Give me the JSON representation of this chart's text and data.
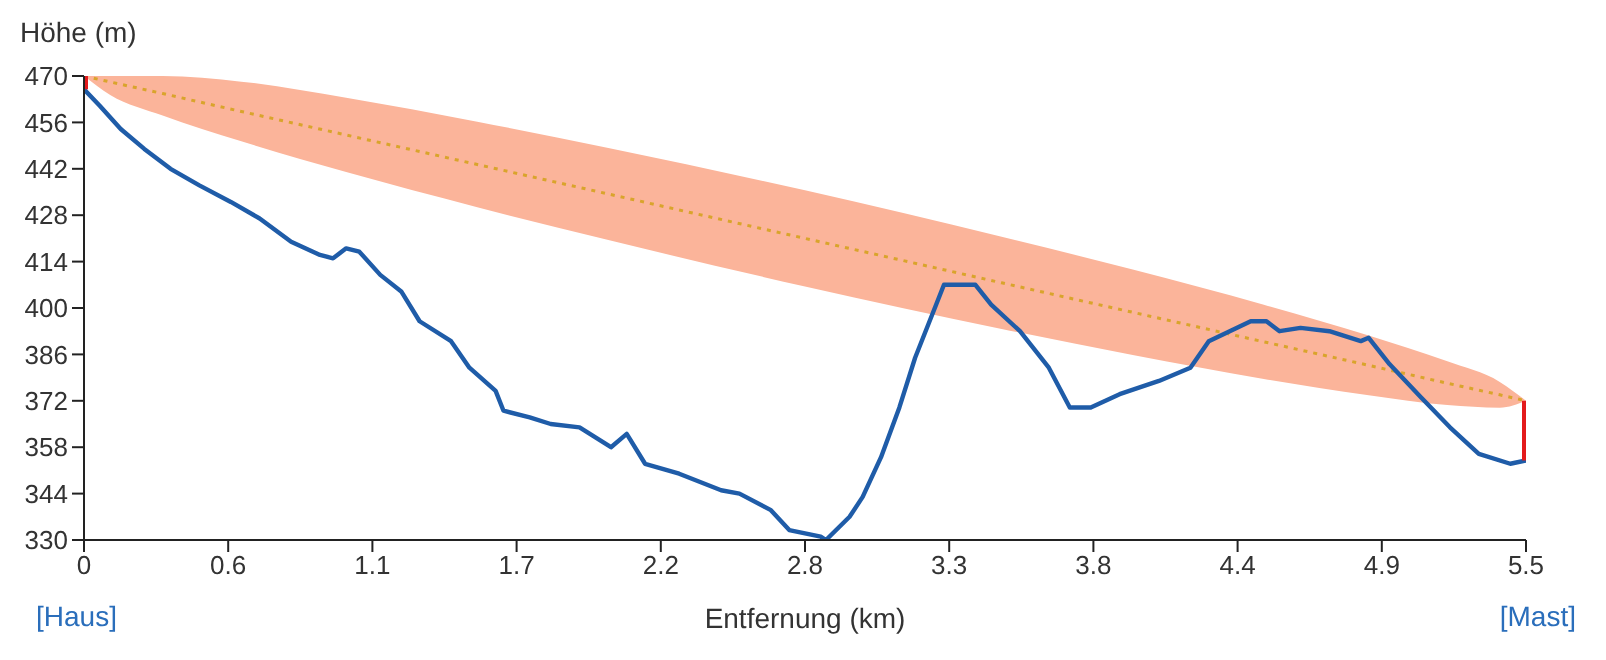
{
  "chart_data": {
    "type": "line",
    "ylabel": "Höhe (m)",
    "xlabel": "Entfernung (km)",
    "xlim": [
      0,
      5.5
    ],
    "xticks": [
      0,
      {
        "value": 0.55,
        "label": "0.6"
      },
      1.1,
      {
        "value": 1.65,
        "label": "1.7"
      },
      2.2,
      {
        "value": 2.75,
        "label": "2.8"
      },
      3.3,
      {
        "value": 3.85,
        "label": "3.8"
      },
      4.4,
      {
        "value": 4.95,
        "label": "4.9"
      },
      5.5
    ],
    "ylim": [
      330,
      470
    ],
    "yticks": [
      330,
      344,
      358,
      372,
      386,
      400,
      414,
      428,
      442,
      456,
      470
    ],
    "marker": "none",
    "annotations": [
      "[Haus]",
      "[Mast]"
    ],
    "series": [
      {
        "type": "line",
        "line_style": "dotted",
        "color": "#d9a42c",
        "x": [
          0,
          0.1,
          0.3,
          0.6,
          1,
          1.5,
          2,
          2.75,
          3.5,
          4,
          4.5,
          4.9,
          5.2,
          5.4,
          5.5
        ],
        "values": [
          470,
          468.2,
          464.7,
          459.3,
          452.2,
          443.3,
          434.4,
          421,
          407.6,
          398.7,
          389.8,
          382.7,
          377.3,
          373.8,
          372
        ],
        "lower": [
          470,
          464.3,
          458.1,
          450.3,
          441,
          430.4,
          420.5,
          406.5,
          393.7,
          385.8,
          378.6,
          373.7,
          370.7,
          369.9,
          372
        ],
        "upper": [
          470,
          470,
          470,
          468.3,
          463.4,
          456.2,
          448.3,
          435.5,
          421.5,
          411.6,
          401,
          391.7,
          383.9,
          377.7,
          372
        ]
      },
      {
        "line_style": "solid",
        "color": "#1f5ca8",
        "x": [
          0,
          0.06,
          0.14,
          0.23,
          0.33,
          0.44,
          0.56,
          0.67,
          0.79,
          0.9,
          0.95,
          1.0,
          1.05,
          1.13,
          1.21,
          1.28,
          1.4,
          1.47,
          1.57,
          1.6,
          1.7,
          1.78,
          1.89,
          2.01,
          2.07,
          2.14,
          2.27,
          2.43,
          2.5,
          2.62,
          2.69,
          2.81,
          2.83,
          2.92,
          2.97,
          3.04,
          3.11,
          3.17,
          3.25,
          3.28,
          3.34,
          3.4,
          3.46,
          3.57,
          3.68,
          3.76,
          3.84,
          3.95,
          4.1,
          4.22,
          4.29,
          4.37,
          4.45,
          4.51,
          4.56,
          4.64,
          4.75,
          4.87,
          4.9,
          4.98,
          5.1,
          5.21,
          5.32,
          5.44,
          5.5
        ],
        "values": [
          466,
          461,
          454,
          448,
          442,
          437,
          432,
          427,
          420,
          416,
          415,
          418,
          417,
          410,
          405,
          396,
          390,
          382,
          375,
          369,
          367,
          365,
          364,
          358,
          362,
          353,
          350,
          345,
          344,
          339,
          333,
          331,
          330,
          337,
          343,
          355,
          370,
          385,
          401,
          407,
          407,
          407,
          401,
          393,
          382,
          370,
          370,
          374,
          378,
          382,
          390,
          393,
          396,
          396,
          393,
          394,
          393,
          390,
          391,
          383,
          373,
          364,
          356,
          353,
          354
        ]
      },
      {
        "line_style": "solid",
        "color": "#e31a1c",
        "x": [
          0,
          0
        ],
        "values": [
          466,
          470
        ]
      },
      {
        "line_style": "solid",
        "color": "#e31a1c",
        "x": [
          5.5,
          5.5
        ],
        "values": [
          354,
          372
        ]
      }
    ]
  }
}
